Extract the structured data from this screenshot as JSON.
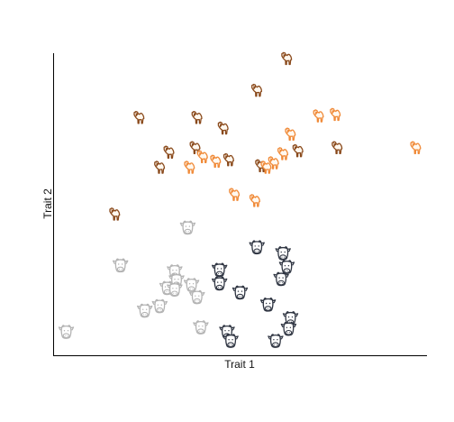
{
  "chart_data": {
    "type": "scatter",
    "xlabel": "Trait 1",
    "ylabel": "Trait 2",
    "xlim": [
      0,
      100
    ],
    "ylim": [
      0,
      100
    ],
    "ticks": "none",
    "grid": false,
    "legend": "none",
    "series": [
      {
        "marker": "camel-icon",
        "palette": "dark-brown",
        "color": "#8a4a1c",
        "points": [
          {
            "x": 62.0,
            "y": 98.0
          },
          {
            "x": 54.0,
            "y": 87.5
          },
          {
            "x": 22.5,
            "y": 78.5
          },
          {
            "x": 38.0,
            "y": 78.5
          },
          {
            "x": 45.0,
            "y": 75.0
          },
          {
            "x": 30.5,
            "y": 67.0
          },
          {
            "x": 37.5,
            "y": 68.5
          },
          {
            "x": 28.0,
            "y": 62.0
          },
          {
            "x": 46.5,
            "y": 64.5
          },
          {
            "x": 55.0,
            "y": 62.5
          },
          {
            "x": 65.0,
            "y": 67.5
          },
          {
            "x": 75.5,
            "y": 68.5
          },
          {
            "x": 16.0,
            "y": 46.5
          }
        ]
      },
      {
        "marker": "camel-icon",
        "palette": "light-orange",
        "color": "#f08a38",
        "points": [
          {
            "x": 70.5,
            "y": 79.0
          },
          {
            "x": 75.0,
            "y": 79.5
          },
          {
            "x": 63.0,
            "y": 73.0
          },
          {
            "x": 61.0,
            "y": 66.5
          },
          {
            "x": 58.5,
            "y": 63.5
          },
          {
            "x": 39.5,
            "y": 65.5
          },
          {
            "x": 36.0,
            "y": 62.0
          },
          {
            "x": 43.0,
            "y": 64.0
          },
          {
            "x": 56.5,
            "y": 62.0
          },
          {
            "x": 48.0,
            "y": 53.0
          },
          {
            "x": 53.5,
            "y": 51.0
          },
          {
            "x": 96.5,
            "y": 68.5
          }
        ]
      },
      {
        "marker": "cow-icon",
        "palette": "dark-slate",
        "color": "#2f3542",
        "points": [
          {
            "x": 54.5,
            "y": 35.5
          },
          {
            "x": 61.5,
            "y": 33.5
          },
          {
            "x": 62.5,
            "y": 29.0
          },
          {
            "x": 61.0,
            "y": 25.0
          },
          {
            "x": 44.5,
            "y": 28.0
          },
          {
            "x": 44.5,
            "y": 23.5
          },
          {
            "x": 50.0,
            "y": 20.5
          },
          {
            "x": 57.5,
            "y": 16.5
          },
          {
            "x": 63.5,
            "y": 12.0
          },
          {
            "x": 63.0,
            "y": 8.5
          },
          {
            "x": 46.5,
            "y": 7.5
          },
          {
            "x": 47.5,
            "y": 4.5
          },
          {
            "x": 59.5,
            "y": 4.5
          }
        ]
      },
      {
        "marker": "cow-icon",
        "palette": "light-grey",
        "color": "#b3b3b3",
        "points": [
          {
            "x": 36.0,
            "y": 42.0
          },
          {
            "x": 18.0,
            "y": 29.5
          },
          {
            "x": 32.5,
            "y": 27.5
          },
          {
            "x": 33.0,
            "y": 24.5
          },
          {
            "x": 37.0,
            "y": 23.0
          },
          {
            "x": 30.5,
            "y": 22.0
          },
          {
            "x": 32.5,
            "y": 21.5
          },
          {
            "x": 38.5,
            "y": 19.0
          },
          {
            "x": 28.5,
            "y": 16.0
          },
          {
            "x": 24.5,
            "y": 14.5
          },
          {
            "x": 39.5,
            "y": 9.0
          },
          {
            "x": 3.5,
            "y": 7.5
          }
        ]
      }
    ]
  }
}
